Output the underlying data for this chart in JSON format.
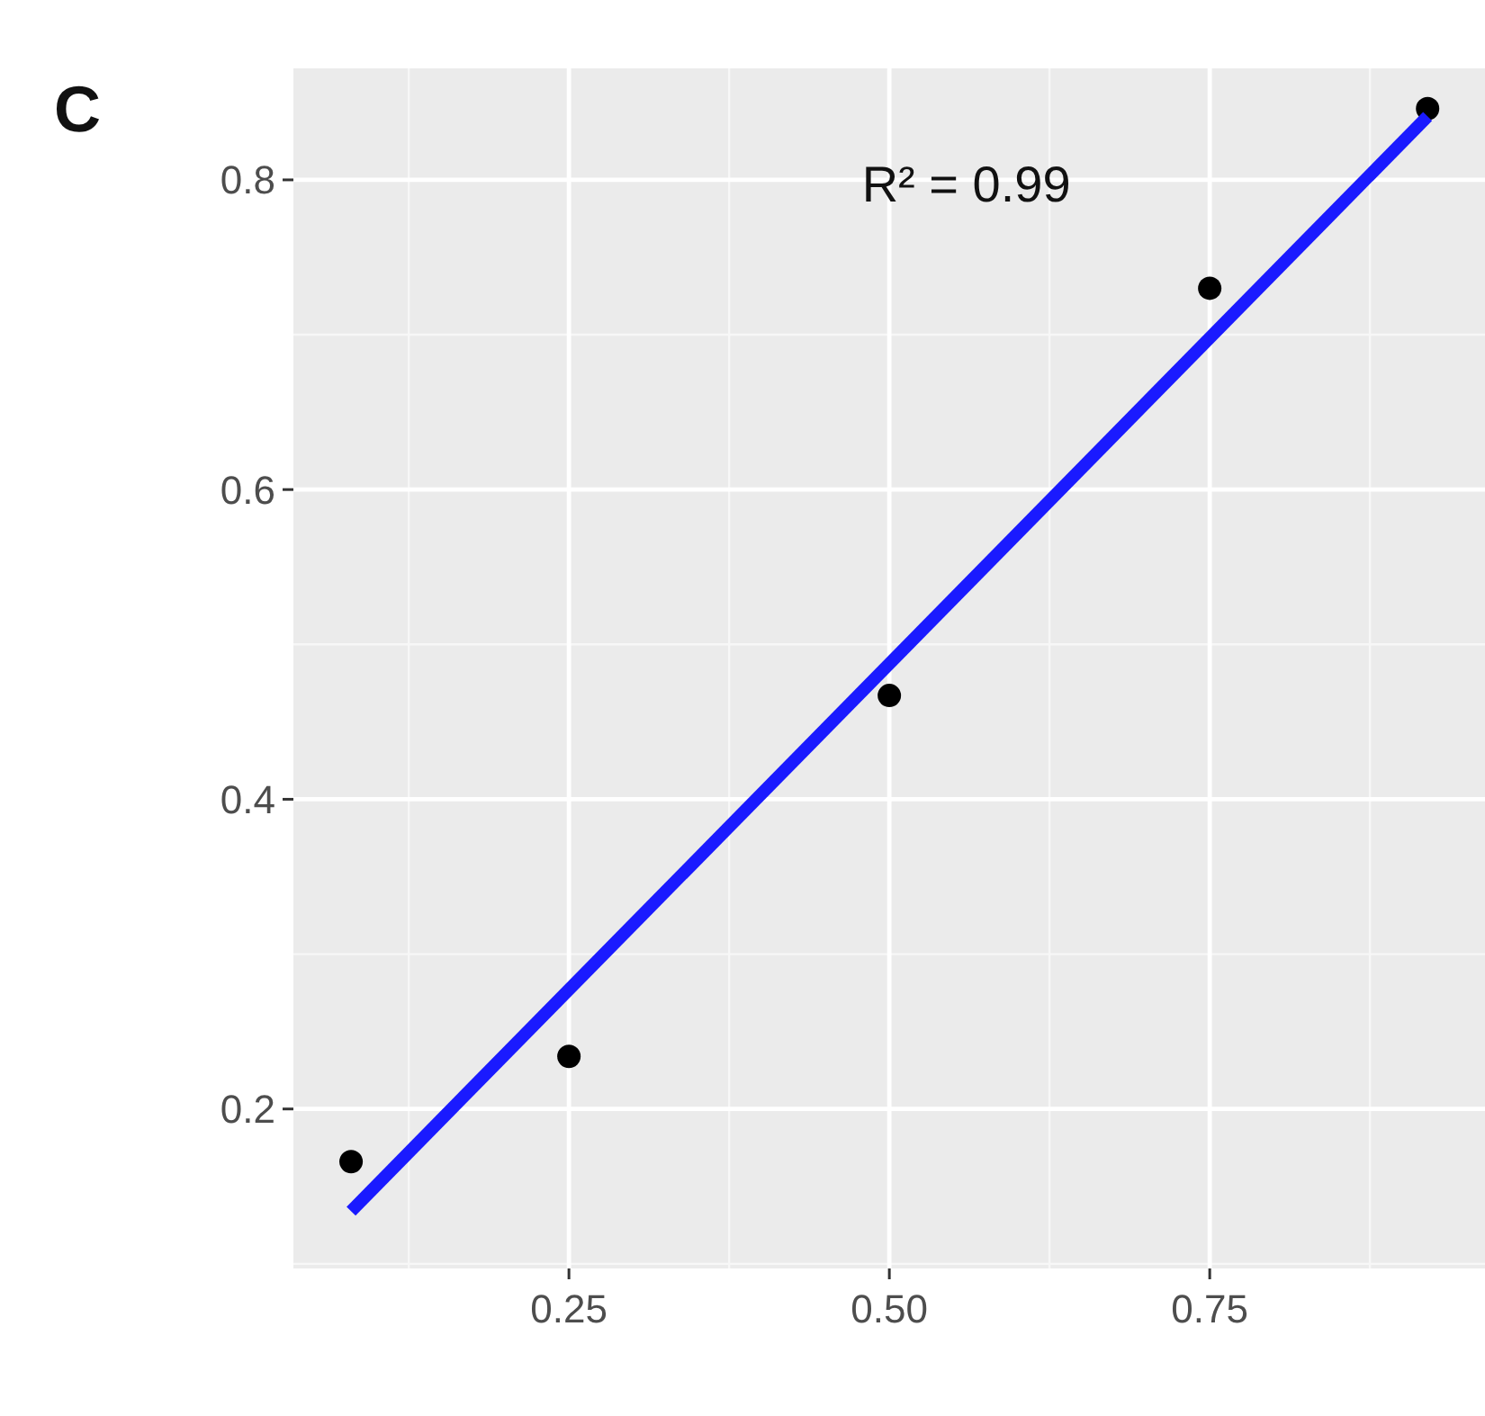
{
  "chart_data": {
    "type": "scatter",
    "annotations": [
      "C",
      "R² = 0.99"
    ],
    "xlim": [
      0.035,
      0.969
    ],
    "xticks": [
      {
        "value": 0.25,
        "label": "0.25"
      },
      {
        "value": 0.5,
        "label": "0.50"
      },
      {
        "value": 0.75,
        "label": "0.75"
      }
    ],
    "ylim": [
      0.097,
      0.872
    ],
    "yticks": [
      0.2,
      0.4,
      0.6,
      0.8
    ],
    "grid": true,
    "series": [
      {
        "marker": "circle",
        "color": "#000000",
        "x": [
          0.08,
          0.25,
          0.5,
          0.75,
          0.92
        ],
        "values": [
          0.166,
          0.234,
          0.467,
          0.73,
          0.846
        ]
      },
      {
        "type": "line",
        "color": "#1a1aff",
        "x": [
          0.08,
          0.92
        ],
        "values": [
          0.134,
          0.841
        ],
        "line_style": "solid"
      }
    ]
  }
}
